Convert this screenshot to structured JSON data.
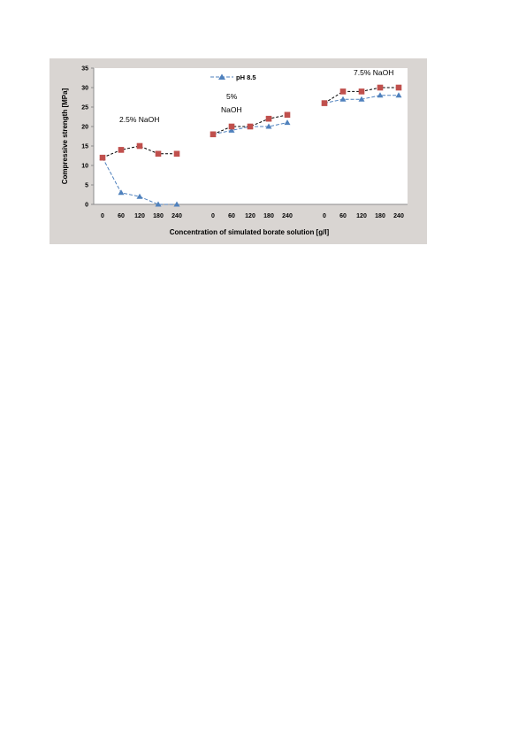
{
  "chart_data": {
    "type": "line",
    "xlabel": "Concentration of simulated borate solution [g/l]",
    "ylabel": "Compressive strength [MPa]",
    "ylim": [
      0,
      35
    ],
    "yticks": [
      "0",
      "5",
      "10",
      "15",
      "20",
      "25",
      "30",
      "35"
    ],
    "legend": {
      "placement": "top-center",
      "entries": [
        "pH 8.5"
      ]
    },
    "grid": false,
    "colors": {
      "ph85": "#4f81bd",
      "other": "#c0504d",
      "plot_bg": "#ffffff",
      "outer_bg": "#d9d5d2"
    },
    "groups": [
      {
        "label": "2.5% NaOH",
        "x": [
          "0",
          "60",
          "120",
          "180",
          "240"
        ],
        "ph85": [
          12,
          3,
          2,
          0,
          0
        ],
        "other": [
          12,
          14,
          15,
          13,
          13
        ]
      },
      {
        "label_lines": [
          "5%",
          "NaOH"
        ],
        "x": [
          "0",
          "60",
          "120",
          "180",
          "240"
        ],
        "ph85": [
          18,
          19,
          20,
          20,
          21
        ],
        "other": [
          18,
          20,
          20,
          22,
          23
        ]
      },
      {
        "label": "7.5% NaOH",
        "x": [
          "0",
          "60",
          "120",
          "180",
          "240"
        ],
        "ph85": [
          26,
          27,
          27,
          28,
          28
        ],
        "other": [
          26,
          29,
          29,
          30,
          30
        ]
      }
    ]
  }
}
